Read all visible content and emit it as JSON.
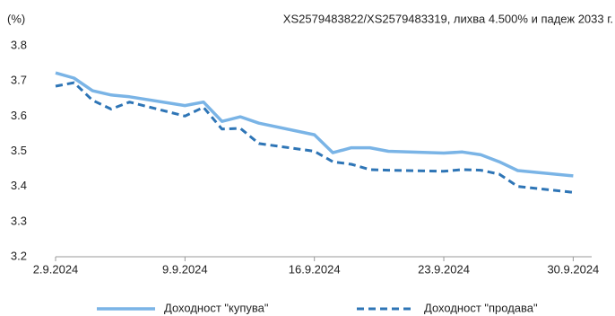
{
  "chart_data": {
    "type": "line",
    "title": "XS2579483822/XS2579483319, лихва 4.500% и падеж 2033 г.",
    "y_label": "(%)",
    "x": [
      "2.9.2024",
      "3.9.2024",
      "4.9.2024",
      "5.9.2024",
      "6.9.2024",
      "9.9.2024",
      "10.9.2024",
      "11.9.2024",
      "12.9.2024",
      "13.9.2024",
      "16.9.2024",
      "17.9.2024",
      "18.9.2024",
      "19.9.2024",
      "20.9.2024",
      "23.9.2024",
      "24.9.2024",
      "25.9.2024",
      "26.9.2024",
      "27.9.2024",
      "30.9.2024"
    ],
    "series": [
      {
        "name": "Доходност \"купува\"",
        "color": "#7ab4e6",
        "style": "solid",
        "values": [
          3.723,
          3.708,
          3.672,
          3.66,
          3.655,
          3.63,
          3.64,
          3.585,
          3.598,
          3.58,
          3.547,
          3.496,
          3.51,
          3.51,
          3.5,
          3.495,
          3.498,
          3.49,
          3.47,
          3.445,
          3.43
        ]
      },
      {
        "name": "Доходност \"продава\"",
        "color": "#2e75b6",
        "style": "dashed",
        "values": [
          3.685,
          3.695,
          3.645,
          3.62,
          3.64,
          3.6,
          3.625,
          3.563,
          3.565,
          3.522,
          3.5,
          3.47,
          3.463,
          3.448,
          3.446,
          3.443,
          3.448,
          3.446,
          3.435,
          3.4,
          3.383
        ]
      }
    ],
    "xlim": [
      "2.9.2024",
      "1.10.2024"
    ],
    "xticks": [
      "2.9.2024",
      "9.9.2024",
      "16.9.2024",
      "23.9.2024",
      "30.9.2024"
    ],
    "ylim": [
      3.2,
      3.8
    ],
    "yticks": [
      3.2,
      3.3,
      3.4,
      3.5,
      3.6,
      3.7,
      3.8
    ],
    "grid": false,
    "legend": "bottom"
  }
}
